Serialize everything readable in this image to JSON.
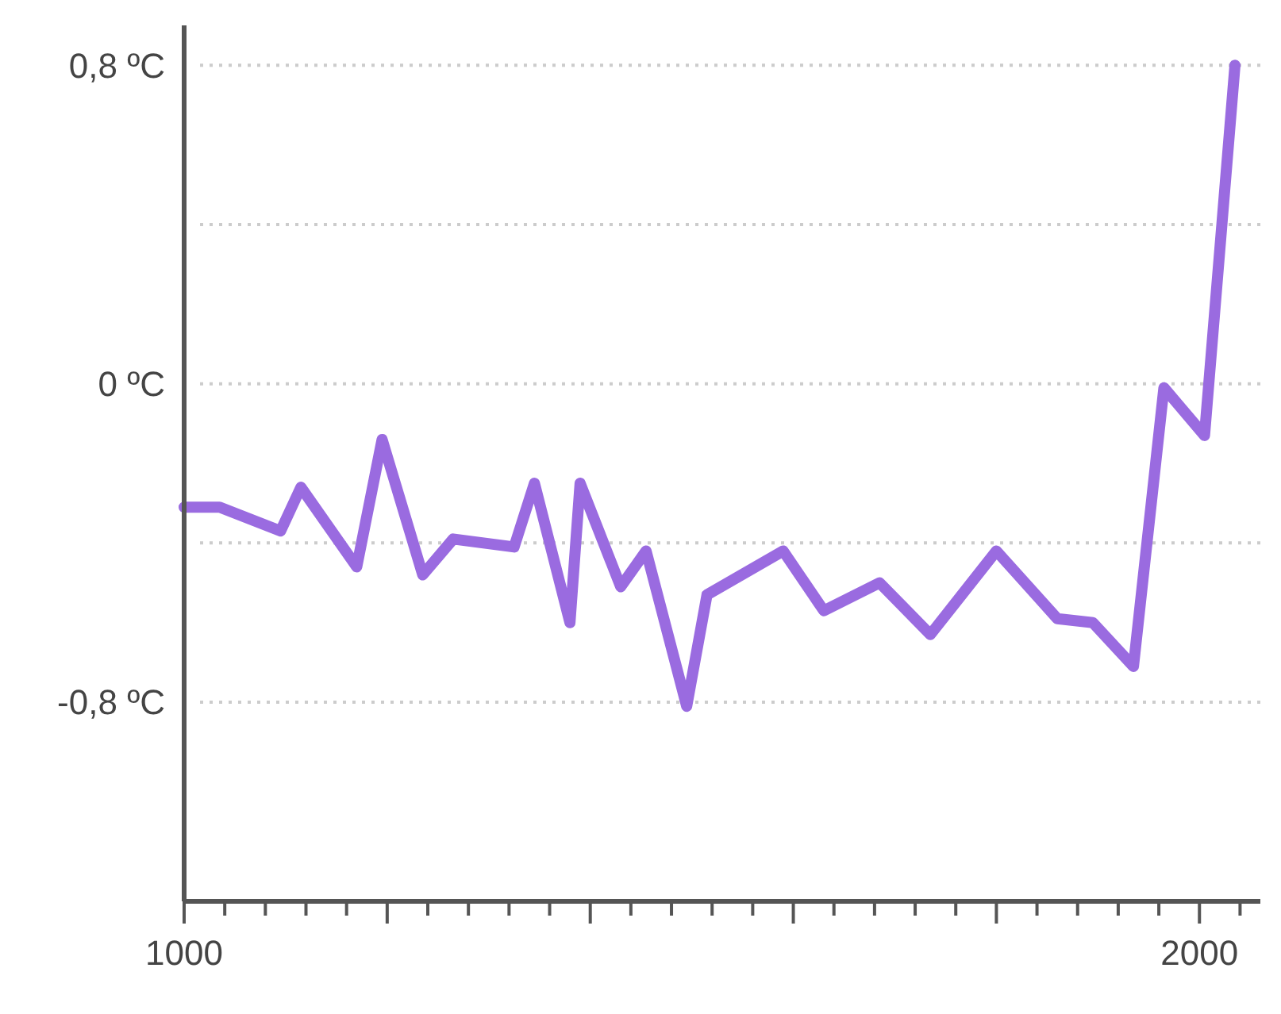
{
  "chart_data": {
    "type": "line",
    "x": [
      1000,
      1035,
      1095,
      1115,
      1170,
      1195,
      1235,
      1265,
      1325,
      1345,
      1380,
      1390,
      1430,
      1455,
      1495,
      1515,
      1590,
      1630,
      1685,
      1735,
      1800,
      1860,
      1895,
      1935,
      1965,
      2005,
      2035
    ],
    "series": [
      {
        "color": "#9a6be0",
        "values": [
          -0.31,
          -0.31,
          -0.37,
          -0.26,
          -0.46,
          -0.14,
          -0.48,
          -0.39,
          -0.41,
          -0.25,
          -0.6,
          -0.25,
          -0.51,
          -0.42,
          -0.81,
          -0.53,
          -0.42,
          -0.57,
          -0.5,
          -0.63,
          -0.42,
          -0.59,
          -0.6,
          -0.71,
          -0.01,
          -0.13,
          0.8
        ]
      }
    ],
    "xlim": [
      1000,
      2060
    ],
    "xticks": [
      1000,
      {
        "value": 1040,
        "label": null
      },
      {
        "value": 1080,
        "label": null
      },
      {
        "value": 1120,
        "label": null
      },
      {
        "value": 1160,
        "label": null
      },
      {
        "value": 1200,
        "label": null
      },
      {
        "value": 1240,
        "label": null
      },
      {
        "value": 1280,
        "label": null
      },
      {
        "value": 1320,
        "label": null
      },
      {
        "value": 1360,
        "label": null
      },
      {
        "value": 1400,
        "label": null
      },
      {
        "value": 1440,
        "label": null
      },
      {
        "value": 1480,
        "label": null
      },
      {
        "value": 1520,
        "label": null
      },
      {
        "value": 1560,
        "label": null
      },
      {
        "value": 1600,
        "label": null
      },
      {
        "value": 1640,
        "label": null
      },
      {
        "value": 1680,
        "label": null
      },
      {
        "value": 1720,
        "label": null
      },
      {
        "value": 1760,
        "label": null
      },
      {
        "value": 1800,
        "label": null
      },
      {
        "value": 1840,
        "label": null
      },
      {
        "value": 1880,
        "label": null
      },
      {
        "value": 1920,
        "label": null
      },
      {
        "value": 1960,
        "label": null
      },
      2000,
      {
        "value": 2040,
        "label": null
      }
    ],
    "ylim": [
      -1.3,
      0.9
    ],
    "yticks": [
      {
        "value": -0.8,
        "label": "-0,8 ºC"
      },
      {
        "value": -0.4,
        "label": null
      },
      {
        "value": 0,
        "label": "0 ºC"
      },
      {
        "value": 0.4,
        "label": null
      },
      {
        "value": 0.8,
        "label": "0,8 ºC"
      }
    ],
    "grid": "y",
    "line_style": "solid",
    "marker": "none"
  }
}
